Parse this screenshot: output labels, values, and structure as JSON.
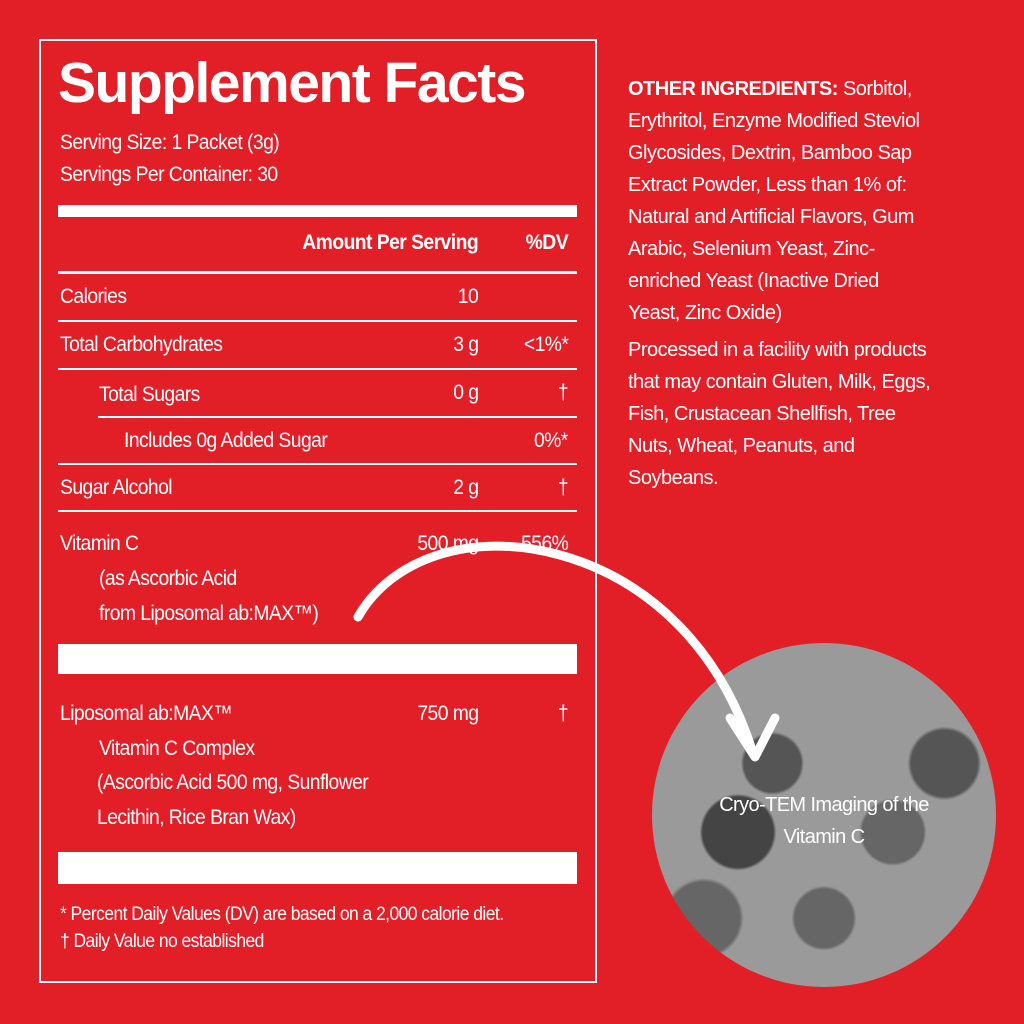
{
  "label": {
    "title": "Supplement Facts",
    "serving_size": "Serving Size: 1 Packet (3g)",
    "servings_per_container": "Servings Per Container: 30",
    "header": {
      "amount": "Amount Per Serving",
      "dv": "%DV"
    },
    "rows": [
      {
        "name": "Calories",
        "amount": "10",
        "dv": ""
      },
      {
        "name": "Total Carbohydrates",
        "amount": "3 g",
        "dv": "<1%*"
      },
      {
        "name": "Total Sugars",
        "amount": "0 g",
        "dv": "†"
      },
      {
        "name": "Includes 0g Added Sugar",
        "amount": "",
        "dv": "0%*"
      },
      {
        "name": "Sugar Alcohol",
        "amount": "2 g",
        "dv": "†"
      },
      {
        "name": "Vitamin C",
        "amount": "500 mg",
        "dv": "556%",
        "sub": [
          "(as Ascorbic Acid",
          "from Liposomal ab:MAX™)"
        ]
      },
      {
        "name": "Liposomal ab:MAX™",
        "amount": "750 mg",
        "dv": "†",
        "sub": [
          "Vitamin C Complex",
          "(Ascorbic Acid 500 mg, Sunflower",
          "Lecithin, Rice Bran Wax)"
        ]
      }
    ],
    "footnotes": [
      "* Percent Daily Values (DV) are based on a 2,000 calorie diet.",
      "† Daily Value no established"
    ]
  },
  "other_ingredients": {
    "heading": "OTHER INGREDIENTS:",
    "lines": [
      " Sorbitol,",
      "Erythritol, Enzyme Modified Steviol",
      "Glycosides, Dextrin, Bamboo Sap",
      "Extract Powder, Less than 1% of:",
      "Natural and Artificial Flavors, Gum",
      "Arabic, Selenium Yeast, Zinc-",
      "enriched Yeast (Inactive Dried",
      "Yeast, Zinc Oxide)"
    ]
  },
  "allergen": {
    "lines": [
      "Processed in a facility with products",
      "that may contain Gluten, Milk, Eggs,",
      "Fish, Crustacean Shellfish, Tree",
      "Nuts, Wheat, Peanuts, and",
      "Soybeans."
    ]
  },
  "image_caption": [
    "Cryo-TEM Imaging of the",
    "Vitamin C"
  ],
  "colors": {
    "background": "#e21f26",
    "text": "#ffffff"
  }
}
